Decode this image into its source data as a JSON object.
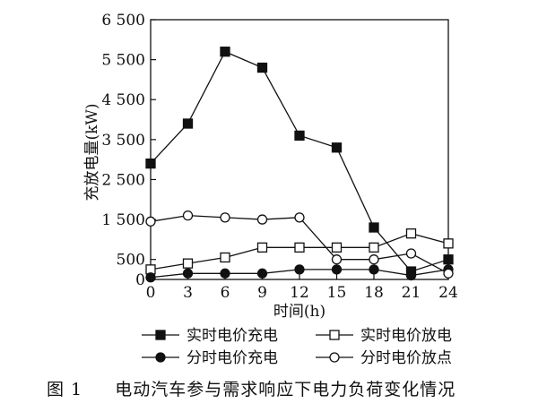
{
  "chart_data": {
    "type": "line",
    "x": [
      0,
      3,
      6,
      9,
      12,
      15,
      18,
      21,
      24
    ],
    "xticks": [
      "0",
      "3",
      "6",
      "9",
      "12",
      "15",
      "18",
      "21",
      "24"
    ],
    "yticks": [
      0,
      500,
      1500,
      2500,
      3500,
      4500,
      5500,
      6500
    ],
    "ytick_labels": [
      "0",
      "500",
      "1 500",
      "2 500",
      "3 500",
      "4 500",
      "5 500",
      "6 500"
    ],
    "xlim": [
      0,
      24
    ],
    "ylim": [
      0,
      6500
    ],
    "xlabel": "时间(h)",
    "ylabel": "充放电量(kW)",
    "grid": false,
    "legend_placement": "bottom",
    "series": [
      {
        "name": "实时电价充电",
        "marker": "filled-square",
        "values": [
          2900,
          3900,
          5700,
          5300,
          3600,
          3300,
          1300,
          200,
          500
        ]
      },
      {
        "name": "实时电价放电",
        "marker": "open-square",
        "values": [
          250,
          400,
          550,
          800,
          800,
          800,
          800,
          1150,
          900
        ]
      },
      {
        "name": "分时电价充电",
        "marker": "filled-circle",
        "values": [
          50,
          150,
          150,
          150,
          250,
          250,
          250,
          100,
          250
        ]
      },
      {
        "name": "分时电价放点",
        "marker": "open-circle",
        "values": [
          1450,
          1600,
          1550,
          1500,
          1550,
          500,
          500,
          650,
          150
        ]
      }
    ]
  },
  "caption": {
    "figure_label": "图 1",
    "title": "电动汽车参与需求响应下电力负荷变化情况"
  },
  "colors": {
    "ink": "#111111",
    "background": "#ffffff"
  }
}
